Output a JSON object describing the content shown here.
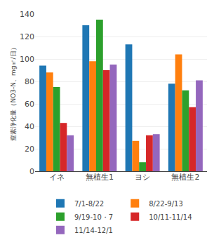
{
  "chart_data": {
    "type": "bar",
    "ylabel": "窒素浄化量（NO3-N、mg㎡/日）",
    "categories": [
      "イネ",
      "無植生1",
      "ヨシ",
      "無植生2"
    ],
    "series": [
      {
        "name": "7/1-8/22",
        "values": [
          94,
          130,
          113,
          78
        ]
      },
      {
        "name": "8/22-9/13",
        "values": [
          88,
          98,
          27,
          104
        ]
      },
      {
        "name": "9/19-10・7",
        "values": [
          75,
          135,
          8,
          72
        ]
      },
      {
        "name": "10/11-11/14",
        "values": [
          43,
          90,
          32,
          57
        ]
      },
      {
        "name": "11/14-12/1",
        "values": [
          32,
          95,
          33,
          81
        ]
      }
    ],
    "ylim": [
      0,
      140
    ],
    "yticks": [
      0,
      20,
      40,
      60,
      80,
      100,
      120,
      140
    ],
    "grid": true,
    "legend": "bottom"
  }
}
